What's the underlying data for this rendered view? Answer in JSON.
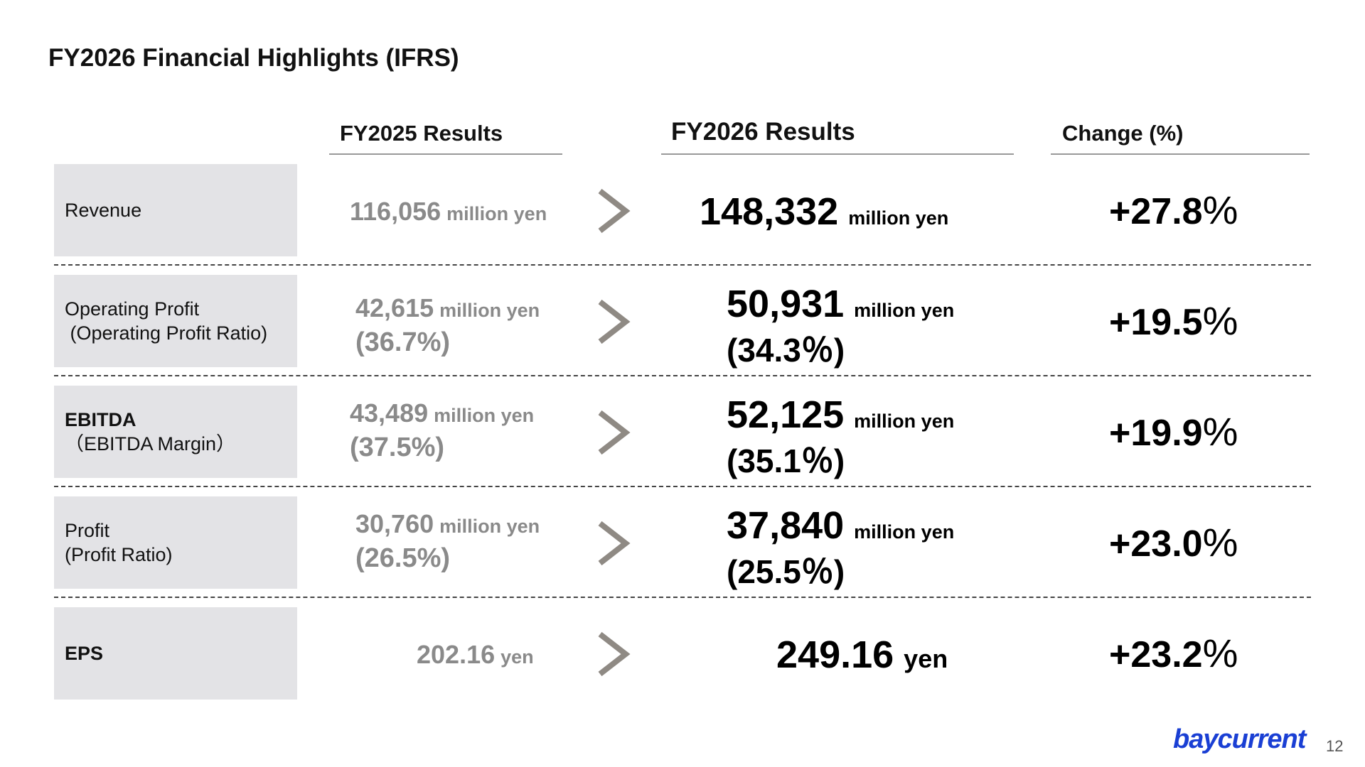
{
  "title": "FY2026 Financial Highlights (IFRS)",
  "headers": {
    "prev": "FY2025 Results",
    "cur": "FY2026 Results",
    "change": "Change (%)"
  },
  "rows": [
    {
      "label_line1": "Revenue",
      "label_line2": "",
      "prev_value": "116,056",
      "prev_unit": "million yen",
      "prev_ratio": "",
      "cur_value": "148,332",
      "cur_unit": "million yen",
      "cur_ratio": "",
      "change_value": "+27.8",
      "change_pct": "%"
    },
    {
      "label_line1": "Operating Profit",
      "label_line2": " (Operating Profit Ratio)",
      "prev_value": "42,615",
      "prev_unit": "million yen",
      "prev_ratio": "(36.7%)",
      "cur_value": "50,931",
      "cur_unit": "million yen",
      "cur_ratio": "(34.3％)",
      "change_value": "+19.5",
      "change_pct": "%"
    },
    {
      "label_line1": "EBITDA",
      "label_line2": "（EBITDA Margin）",
      "prev_value": "43,489",
      "prev_unit": "million yen",
      "prev_ratio": "(37.5%)",
      "cur_value": "52,125",
      "cur_unit": "million yen",
      "cur_ratio": "(35.1％)",
      "change_value": "+19.9",
      "change_pct": "%"
    },
    {
      "label_line1": "Profit",
      "label_line2": "(Profit Ratio)",
      "prev_value": "30,760",
      "prev_unit": "million yen",
      "prev_ratio": "(26.5%)",
      "cur_value": "37,840",
      "cur_unit": "million yen",
      "cur_ratio": "(25.5％)",
      "change_value": "+23.0",
      "change_pct": "%"
    },
    {
      "label_line1": "EPS",
      "label_line2": "",
      "prev_value": "202.16",
      "prev_unit": "yen",
      "prev_ratio": "",
      "cur_value": "249.16",
      "cur_unit": "yen",
      "cur_ratio": "",
      "change_value": "+23.2",
      "change_pct": "%"
    }
  ],
  "logo": "baycurrent",
  "page_number": "12",
  "colors": {
    "label_bg": "#e3e3e6",
    "prev_text": "#8a8a8a",
    "logo": "#1a3fd4"
  }
}
